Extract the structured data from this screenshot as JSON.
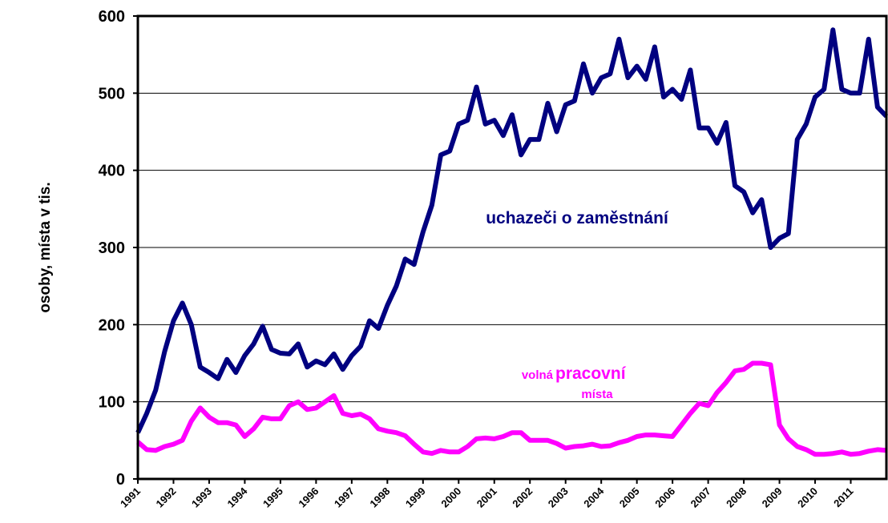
{
  "chart_data": {
    "type": "line",
    "y_label": "osoby, místa v tis.",
    "annotations": [
      {
        "text": "uchazeči o zaměstnání"
      },
      {
        "parts": [
          "volná",
          "pracovní",
          "místa"
        ]
      }
    ],
    "x": [
      1991,
      1991.25,
      1991.5,
      1991.75,
      1992,
      1992.25,
      1992.5,
      1992.75,
      1993,
      1993.25,
      1993.5,
      1993.75,
      1994,
      1994.25,
      1994.5,
      1994.75,
      1995,
      1995.25,
      1995.5,
      1995.75,
      1996,
      1996.25,
      1996.5,
      1996.75,
      1997,
      1997.25,
      1997.5,
      1997.75,
      1998,
      1998.25,
      1998.5,
      1998.75,
      1999,
      1999.25,
      1999.5,
      1999.75,
      2000,
      2000.25,
      2000.5,
      2000.75,
      2001,
      2001.25,
      2001.5,
      2001.75,
      2002,
      2002.25,
      2002.5,
      2002.75,
      2003,
      2003.25,
      2003.5,
      2003.75,
      2004,
      2004.25,
      2004.5,
      2004.75,
      2005,
      2005.25,
      2005.5,
      2005.75,
      2006,
      2006.25,
      2006.5,
      2006.75,
      2007,
      2007.25,
      2007.5,
      2007.75,
      2008,
      2008.25,
      2008.5,
      2008.75,
      2009,
      2009.25,
      2009.5,
      2009.75,
      2010,
      2010.25,
      2010.5,
      2010.75,
      2011,
      2011.25,
      2011.5,
      2011.75,
      2012
    ],
    "series": [
      {
        "color": "#000080",
        "values": [
          60,
          85,
          115,
          165,
          205,
          228,
          200,
          145,
          138,
          130,
          155,
          138,
          160,
          175,
          198,
          168,
          163,
          162,
          175,
          145,
          153,
          148,
          162,
          142,
          160,
          172,
          205,
          195,
          225,
          250,
          285,
          278,
          320,
          355,
          420,
          425,
          460,
          465,
          508,
          460,
          465,
          445,
          472,
          420,
          440,
          440,
          487,
          450,
          485,
          490,
          538,
          500,
          520,
          525,
          570,
          520,
          535,
          518,
          560,
          495,
          505,
          492,
          530,
          455,
          455,
          435,
          462,
          380,
          372,
          345,
          362,
          300,
          312,
          318,
          440,
          460,
          495,
          505,
          582,
          505,
          500,
          500,
          570,
          482,
          470
        ]
      },
      {
        "color": "#ff00ff",
        "values": [
          48,
          38,
          37,
          42,
          45,
          50,
          75,
          92,
          80,
          73,
          73,
          70,
          55,
          65,
          80,
          78,
          78,
          95,
          100,
          90,
          92,
          100,
          108,
          85,
          82,
          84,
          78,
          65,
          62,
          60,
          56,
          45,
          35,
          33,
          37,
          35,
          35,
          42,
          52,
          53,
          52,
          55,
          60,
          60,
          50,
          50,
          50,
          46,
          40,
          42,
          43,
          45,
          42,
          43,
          47,
          50,
          55,
          57,
          57,
          56,
          55,
          70,
          85,
          98,
          95,
          112,
          125,
          140,
          142,
          150,
          150,
          148,
          70,
          52,
          42,
          38,
          32,
          32,
          33,
          35,
          32,
          33,
          36,
          38,
          37
        ]
      }
    ],
    "xlim": [
      1991,
      2012
    ],
    "xticks": [
      1991,
      1992,
      1993,
      1994,
      1995,
      1996,
      1997,
      1998,
      1999,
      2000,
      2001,
      2002,
      2003,
      2004,
      2005,
      2006,
      2007,
      2008,
      2009,
      2010,
      2011
    ],
    "ylim": [
      0,
      600
    ],
    "yticks": [
      0,
      100,
      200,
      300,
      400,
      500,
      600
    ],
    "grid": true
  }
}
